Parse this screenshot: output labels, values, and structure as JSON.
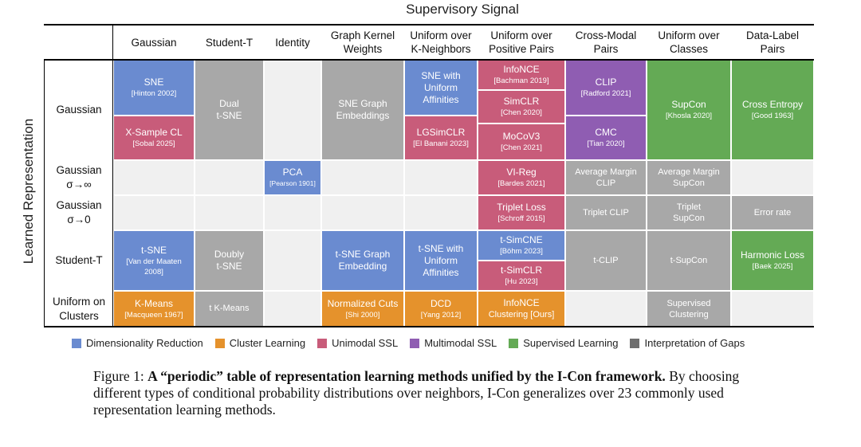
{
  "top_title": "Supervisory Signal",
  "side_title": "Learned Representation",
  "columns": [
    "Gaussian",
    "Student-T",
    "Identity",
    "Graph Kernel\nWeights",
    "Uniform over\nK-Neighbors",
    "Uniform over\nPositive Pairs",
    "Cross-Modal\nPairs",
    "Uniform over\nClasses",
    "Data-Label\nPairs"
  ],
  "rows": [
    "Gaussian",
    "Gaussian\nσ→∞",
    "Gaussian\nσ→0",
    "Student-T",
    "Uniform on\nClusters"
  ],
  "cells": {
    "sne": {
      "title": "SNE",
      "cite": "[Hinton 2002]"
    },
    "xsample": {
      "title": "X-Sample CL",
      "cite": "[Sobal 2025]"
    },
    "dual_tsne": {
      "title": "Dual\nt-SNE"
    },
    "sne_graph": {
      "title": "SNE Graph\nEmbeddings"
    },
    "sne_uniform": {
      "title": "SNE with\nUniform\nAffinities"
    },
    "lgsimclr": {
      "title": "LGSimCLR",
      "cite": "[El Banani 2023]"
    },
    "infonce": {
      "title": "InfoNCE",
      "cite": "[Bachman 2019]"
    },
    "simclr": {
      "title": "SimCLR",
      "cite": "[Chen 2020]"
    },
    "mocov3": {
      "title": "MoCoV3",
      "cite": "[Chen 2021]"
    },
    "clip": {
      "title": "CLIP",
      "cite": "[Radford 2021]"
    },
    "cmc": {
      "title": "CMC",
      "cite": "[Tian 2020]"
    },
    "supcon": {
      "title": "SupCon",
      "cite": "[Khosla 2020]"
    },
    "cross_entropy": {
      "title": "Cross Entropy",
      "cite": "[Good 1963]"
    },
    "pca": {
      "title": "PCA",
      "cite": "[Pearson 1901]"
    },
    "vireg": {
      "title": "VI-Reg",
      "cite": "[Bardes 2021]"
    },
    "avg_margin_clip": {
      "title": "Average Margin\nCLIP"
    },
    "avg_margin_supcon": {
      "title": "Average Margin\nSupCon"
    },
    "triplet_loss": {
      "title": "Triplet Loss",
      "cite": "[Schroff 2015]"
    },
    "triplet_clip": {
      "title": "Triplet CLIP"
    },
    "triplet_supcon": {
      "title": "Triplet\nSupCon"
    },
    "error_rate": {
      "title": "Error rate"
    },
    "tsne": {
      "title": "t-SNE",
      "cite": "[Van der Maaten\n2008]"
    },
    "doubly_tsne": {
      "title": "Doubly\nt-SNE"
    },
    "tsne_graph": {
      "title": "t-SNE Graph\nEmbedding"
    },
    "tsne_uniform": {
      "title": "t-SNE with\nUniform\nAffinities"
    },
    "tsimcne": {
      "title": "t-SimCNE",
      "cite": "[Böhm 2023]"
    },
    "tsimclr": {
      "title": "t-SimCLR",
      "cite": "[Hu 2023]"
    },
    "tclip": {
      "title": "t-CLIP"
    },
    "tsupcon": {
      "title": "t-SupCon"
    },
    "harmonic": {
      "title": "Harmonic Loss",
      "cite": "[Baek 2025]"
    },
    "kmeans": {
      "title": "K-Means",
      "cite": "[Macqueen 1967]"
    },
    "tkmeans": {
      "title": "t K-Means"
    },
    "ncut": {
      "title": "Normalized Cuts",
      "cite": "[Shi 2000]"
    },
    "dcd": {
      "title": "DCD",
      "cite": "[Yang 2012]"
    },
    "infonce_cluster": {
      "title": "InfoNCE",
      "cite": "Clustering [Ours]"
    },
    "supervised_clustering": {
      "title": "Supervised\nClustering"
    }
  },
  "legend": [
    {
      "label": "Dimensionality Reduction",
      "color": "#6a8bd0"
    },
    {
      "label": "Cluster Learning",
      "color": "#e5922c"
    },
    {
      "label": "Unimodal SSL",
      "color": "#c85c7a"
    },
    {
      "label": "Multimodal SSL",
      "color": "#8f5db2"
    },
    {
      "label": "Supervised Learning",
      "color": "#64aa55"
    },
    {
      "label": "Interpretation of Gaps",
      "color": "#a8a8a8"
    }
  ],
  "caption": {
    "label": "Figure 1: ",
    "bold": "A “periodic” table of representation learning methods unified by the I-Con framework.",
    "text": " By choosing different types of conditional probability distributions over neighbors, I-Con generalizes over 23 commonly used representation learning methods."
  }
}
